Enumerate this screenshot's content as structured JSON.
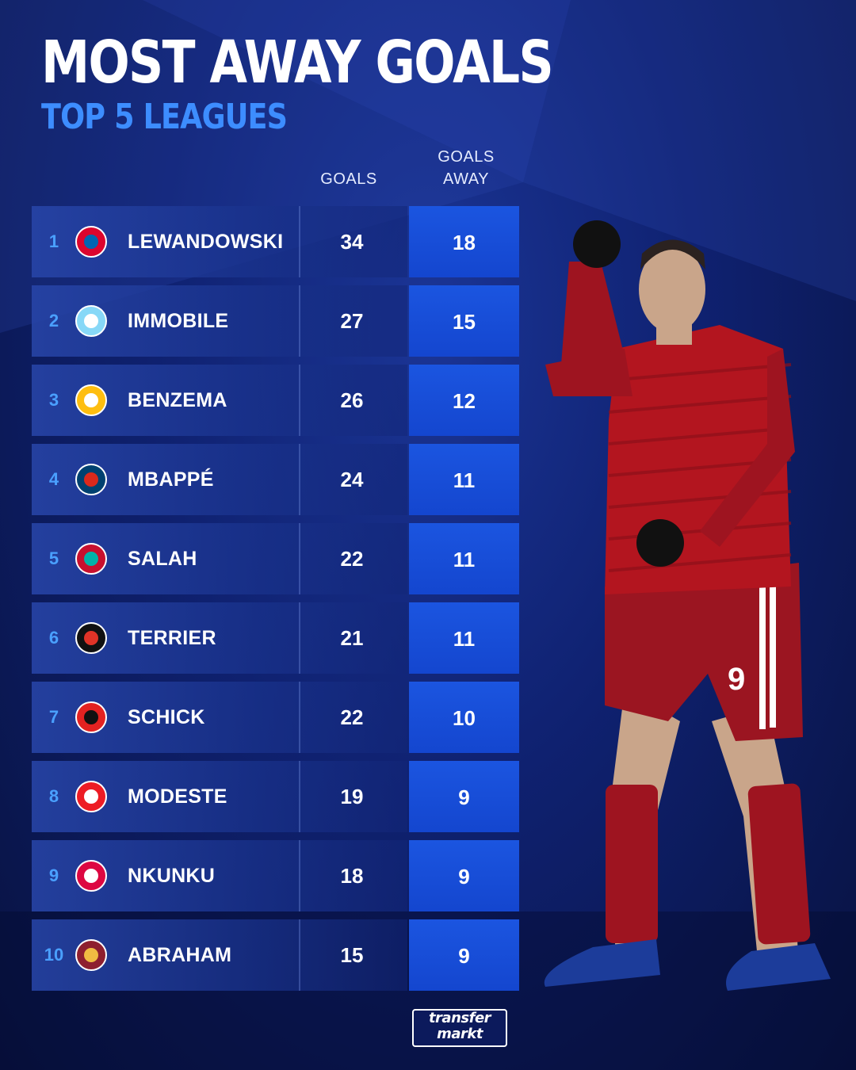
{
  "header": {
    "title": "MOST AWAY GOALS",
    "subtitle": "TOP 5 LEAGUES",
    "col_goals": "GOALS",
    "col_goals_away": "GOALS\nAWAY"
  },
  "colors": {
    "accent_blue": "#3d8dff",
    "away_cell": "#1b55e0",
    "background": "#0f2170",
    "jersey_red": "#b3151f"
  },
  "chart_data": {
    "type": "table",
    "title": "MOST AWAY GOALS",
    "subtitle": "TOP 5 LEAGUES",
    "columns": [
      "",
      "",
      "",
      "GOALS",
      "GOALS AWAY"
    ],
    "rows": [
      {
        "rank": "1",
        "club_icon": "bayern-munich-crest",
        "player": "LEWANDOWSKI",
        "goals": 34,
        "goals_away": 18
      },
      {
        "rank": "2",
        "club_icon": "lazio-crest",
        "player": "IMMOBILE",
        "goals": 27,
        "goals_away": 15
      },
      {
        "rank": "3",
        "club_icon": "real-madrid-crest",
        "player": "BENZEMA",
        "goals": 26,
        "goals_away": 12
      },
      {
        "rank": "4",
        "club_icon": "psg-crest",
        "player": "MBAPPÉ",
        "goals": 24,
        "goals_away": 11
      },
      {
        "rank": "5",
        "club_icon": "liverpool-crest",
        "player": "SALAH",
        "goals": 22,
        "goals_away": 11
      },
      {
        "rank": "6",
        "club_icon": "rennes-crest",
        "player": "TERRIER",
        "goals": 21,
        "goals_away": 11
      },
      {
        "rank": "7",
        "club_icon": "leverkusen-crest",
        "player": "SCHICK",
        "goals": 22,
        "goals_away": 10
      },
      {
        "rank": "8",
        "club_icon": "koln-crest",
        "player": "MODESTE",
        "goals": 19,
        "goals_away": 9
      },
      {
        "rank": "9",
        "club_icon": "leipzig-crest",
        "player": "NKUNKU",
        "goals": 18,
        "goals_away": 9
      },
      {
        "rank": "10",
        "club_icon": "roma-crest",
        "player": "ABRAHAM",
        "goals": 15,
        "goals_away": 9
      }
    ]
  },
  "brand": {
    "logo_line1": "transfer",
    "logo_line2": "markt"
  }
}
